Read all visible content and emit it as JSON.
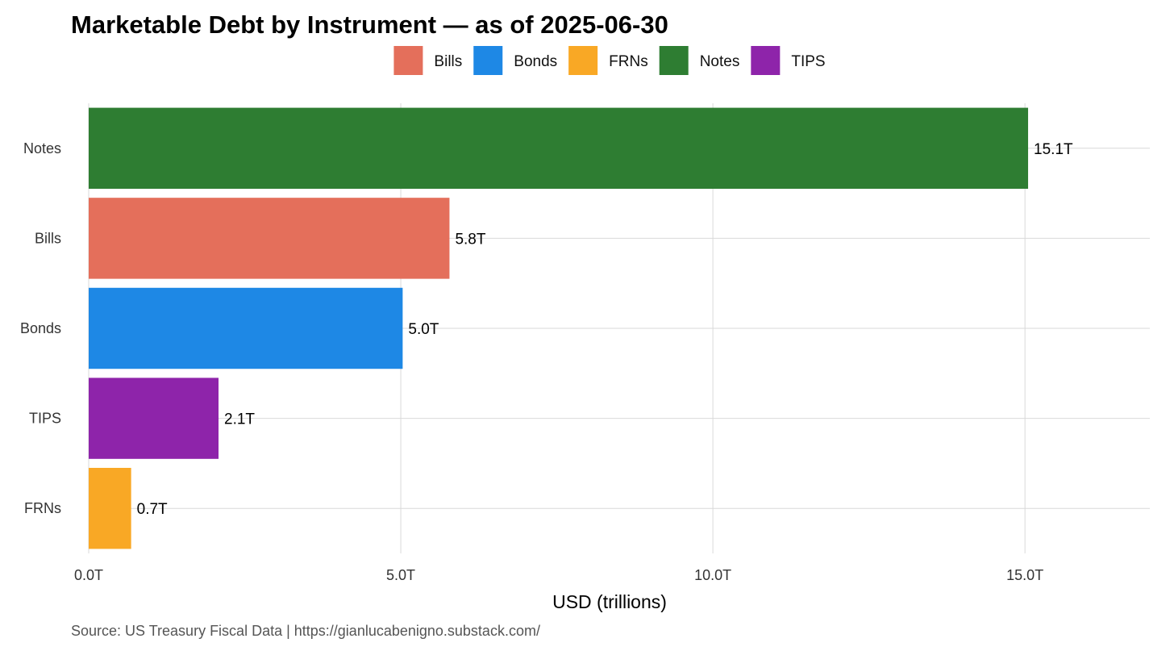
{
  "chart_data": {
    "type": "bar",
    "orientation": "horizontal",
    "title": "Marketable Debt by Instrument — as of 2025-06-30",
    "xlabel": "USD (trillions)",
    "ylabel": "",
    "xlim": [
      0,
      17.0
    ],
    "x_ticks": [
      0,
      5,
      10,
      15
    ],
    "x_tick_labels": [
      "0.0T",
      "5.0T",
      "10.0T",
      "15.0T"
    ],
    "grid": true,
    "legend_position": "top",
    "legend": [
      {
        "name": "Bills",
        "color": "#E46F5B"
      },
      {
        "name": "Bonds",
        "color": "#1E88E5"
      },
      {
        "name": "FRNs",
        "color": "#F9A825"
      },
      {
        "name": "Notes",
        "color": "#2E7D32"
      },
      {
        "name": "TIPS",
        "color": "#8E24AA"
      }
    ],
    "categories": [
      "Notes",
      "Bills",
      "Bonds",
      "TIPS",
      "FRNs"
    ],
    "values": [
      15.05,
      5.78,
      5.03,
      2.08,
      0.68
    ],
    "data_labels": [
      "15.1T",
      "5.8T",
      "5.0T",
      "2.1T",
      "0.7T"
    ],
    "bar_colors": [
      "#2E7D32",
      "#E46F5B",
      "#1E88E5",
      "#8E24AA",
      "#F9A825"
    ]
  },
  "caption": "Source: US Treasury Fiscal Data | https://gianlucabenigno.substack.com/"
}
